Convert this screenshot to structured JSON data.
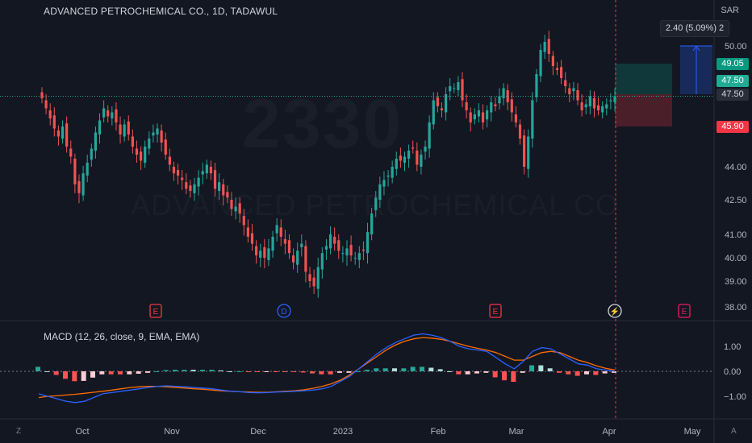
{
  "header": {
    "title": "ADVANCED PETROCHEMICAL CO., 1D, TADAWUL",
    "currency": "SAR"
  },
  "watermark": {
    "symbol": "2330",
    "name": "ADVANCED PETROCHEMICAL CO"
  },
  "macd_title": "MACD (12, 26, close, 9, EMA, EMA)",
  "price_tags": {
    "target": "49.05",
    "current": "47.50",
    "entry": "47.50",
    "stop": "45.90"
  },
  "measure_label": "2.40 (5.09%) 2",
  "event_markers": [
    {
      "label": "E",
      "type": "earnings"
    },
    {
      "label": "D",
      "type": "dividend"
    },
    {
      "label": "E",
      "type": "earnings"
    },
    {
      "label": "⚡",
      "type": "split"
    },
    {
      "label": "E",
      "type": "earnings-upcoming"
    }
  ],
  "corner_left": "Z",
  "corner_right": "A",
  "colors": {
    "up": "#26a69a",
    "down": "#ef5350",
    "macd": "#2962ff",
    "signal": "#ff6d00",
    "target": "#4caf50",
    "stop": "#f23645",
    "current": "#2a6f97"
  },
  "chart_data": [
    {
      "type": "candlestick",
      "title": "ADVANCED PETROCHEMICAL CO., 1D, TADAWUL",
      "y_axis_unit": "SAR",
      "y_ticks": [
        "50.00",
        "44.00",
        "42.50",
        "41.00",
        "40.00",
        "39.00",
        "38.00"
      ],
      "x_ticks": [
        "Oct",
        "Nov",
        "Dec",
        "2023",
        "Feb",
        "Mar",
        "Apr",
        "May"
      ],
      "close_values": [
        47.4,
        46.9,
        46.4,
        45.9,
        45.5,
        46.0,
        45.0,
        44.5,
        43.2,
        42.8,
        43.7,
        44.2,
        44.9,
        45.7,
        46.3,
        46.9,
        46.5,
        46.7,
        46.2,
        45.6,
        46.1,
        45.6,
        45.0,
        44.6,
        44.3,
        45.0,
        45.4,
        45.7,
        45.9,
        45.2,
        44.6,
        44.1,
        43.7,
        43.6,
        43.4,
        43.0,
        42.9,
        43.2,
        43.5,
        43.8,
        44.1,
        43.7,
        43.0,
        43.3,
        42.7,
        42.6,
        42.1,
        42.2,
        41.9,
        41.4,
        40.9,
        40.6,
        40.1,
        40.3,
        40.0,
        40.4,
        40.9,
        41.4,
        40.9,
        40.6,
        40.2,
        39.8,
        40.3,
        40.6,
        39.4,
        39.0,
        38.8,
        39.6,
        40.2,
        40.5,
        41.0,
        40.6,
        40.3,
        40.2,
        40.4,
        40.1,
        40.0,
        40.2,
        40.3,
        41.1,
        41.9,
        42.6,
        43.2,
        43.4,
        43.6,
        44.0,
        44.4,
        44.3,
        44.5,
        44.8,
        44.9,
        44.1,
        44.6,
        45.0,
        46.2,
        47.3,
        47.0,
        46.8,
        47.6,
        48.0,
        47.9,
        48.2,
        47.3,
        46.8,
        46.2,
        46.6,
        46.8,
        46.2,
        46.8,
        47.2,
        47.0,
        47.5,
        47.9,
        47.2,
        46.7,
        46.2,
        45.4,
        44.0,
        45.5,
        47.3,
        48.6,
        49.8,
        50.2,
        49.6,
        49.0,
        48.8,
        48.4,
        48.0,
        47.6,
        47.9,
        47.3,
        46.8,
        47.1,
        47.5,
        46.9,
        46.8,
        47.0,
        47.1,
        47.3,
        47.5
      ],
      "macd_values": [
        -0.9,
        -1.0,
        -1.1,
        -1.2,
        -1.25,
        -1.2,
        -1.05,
        -0.9,
        -0.85,
        -0.8,
        -0.75,
        -0.7,
        -0.65,
        -0.6,
        -0.58,
        -0.6,
        -0.62,
        -0.65,
        -0.67,
        -0.7,
        -0.75,
        -0.8,
        -0.82,
        -0.85,
        -0.86,
        -0.85,
        -0.83,
        -0.82,
        -0.8,
        -0.78,
        -0.75,
        -0.7,
        -0.6,
        -0.4,
        -0.2,
        0.1,
        0.4,
        0.7,
        0.95,
        1.15,
        1.3,
        1.45,
        1.5,
        1.45,
        1.35,
        1.2,
        1.0,
        0.9,
        0.85,
        0.8,
        0.55,
        0.3,
        0.1,
        0.4,
        0.8,
        0.95,
        0.9,
        0.7,
        0.5,
        0.3,
        0.25,
        0.1,
        0.05,
        0.0
      ],
      "signal_values": [
        -1.05,
        -1.0,
        -0.98,
        -0.95,
        -0.92,
        -0.88,
        -0.84,
        -0.8,
        -0.75,
        -0.7,
        -0.65,
        -0.62,
        -0.6,
        -0.6,
        -0.62,
        -0.65,
        -0.67,
        -0.7,
        -0.72,
        -0.75,
        -0.78,
        -0.8,
        -0.82,
        -0.83,
        -0.84,
        -0.84,
        -0.82,
        -0.8,
        -0.78,
        -0.74,
        -0.68,
        -0.6,
        -0.5,
        -0.35,
        -0.15,
        0.1,
        0.35,
        0.6,
        0.85,
        1.05,
        1.2,
        1.3,
        1.35,
        1.33,
        1.28,
        1.2,
        1.1,
        1.0,
        0.92,
        0.85,
        0.75,
        0.6,
        0.45,
        0.45,
        0.6,
        0.75,
        0.8,
        0.75,
        0.6,
        0.45,
        0.35,
        0.22,
        0.12,
        0.05
      ],
      "macd_y_ticks": [
        "1.00",
        "0.00",
        "−1.00"
      ]
    }
  ]
}
